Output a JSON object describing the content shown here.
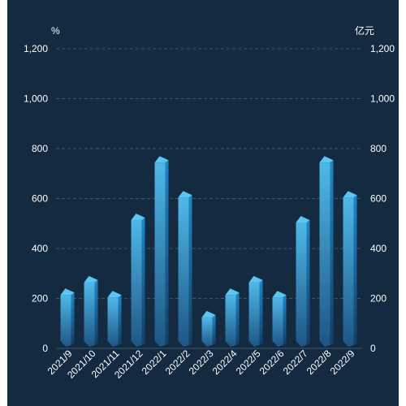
{
  "chart_data": {
    "type": "bar",
    "title": "",
    "categories": [
      "2021/9",
      "2021/10",
      "2021/11",
      "2021/12",
      "2022/1",
      "2022/2",
      "2022/3",
      "2022/4",
      "2022/5",
      "2022/6",
      "2022/7",
      "2022/8",
      "2022/9"
    ],
    "values": [
      240,
      290,
      230,
      540,
      770,
      630,
      150,
      240,
      290,
      230,
      530,
      770,
      630
    ],
    "y_left": {
      "label": "%",
      "min": 0,
      "max": 1200,
      "ticks": [
        "0",
        "200",
        "400",
        "600",
        "800",
        "1,000",
        "1,200"
      ]
    },
    "y_right": {
      "label": "亿元",
      "min": 0,
      "max": 1200,
      "ticks": [
        "0",
        "200",
        "400",
        "600",
        "800",
        "1,000",
        "1,200"
      ]
    },
    "grid": true,
    "legend": "none",
    "colors": {
      "background": "#132a40",
      "bar_top": "#5bc6f0",
      "bar_bottom": "#1f5687",
      "grid": "#3b5670"
    }
  }
}
